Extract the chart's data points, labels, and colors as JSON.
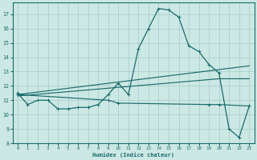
{
  "xlabel": "Humidex (Indice chaleur)",
  "bg_color": "#cce8e4",
  "grid_color": "#aacfcb",
  "line_color": "#1a6b6b",
  "xlim": [
    -0.5,
    23.5
  ],
  "ylim": [
    8,
    17.8
  ],
  "yticks": [
    8,
    9,
    10,
    11,
    12,
    13,
    14,
    15,
    16,
    17
  ],
  "xticks": [
    0,
    1,
    2,
    3,
    4,
    5,
    6,
    7,
    8,
    9,
    10,
    11,
    12,
    13,
    14,
    15,
    16,
    17,
    18,
    19,
    20,
    21,
    22,
    23
  ],
  "main_x": [
    0,
    1,
    2,
    3,
    4,
    5,
    6,
    7,
    8,
    9,
    10,
    11,
    12,
    13,
    14,
    15,
    16,
    17,
    18,
    19,
    20,
    21,
    22,
    23
  ],
  "main_y": [
    11.5,
    10.7,
    11.0,
    11.0,
    10.4,
    10.4,
    10.5,
    10.5,
    10.7,
    11.4,
    12.2,
    11.4,
    14.6,
    16.0,
    17.4,
    17.3,
    16.8,
    14.8,
    14.4,
    13.5,
    12.9,
    9.0,
    8.4,
    10.6
  ],
  "upper_trend_x": [
    0,
    23
  ],
  "upper_trend_y": [
    11.4,
    13.4
  ],
  "mid_trend_x": [
    0,
    20,
    23
  ],
  "mid_trend_y": [
    11.3,
    12.5,
    12.5
  ],
  "flat_x": [
    0,
    9,
    10,
    19,
    20,
    23
  ],
  "flat_y": [
    11.4,
    11.0,
    10.8,
    10.7,
    10.7,
    10.6
  ]
}
